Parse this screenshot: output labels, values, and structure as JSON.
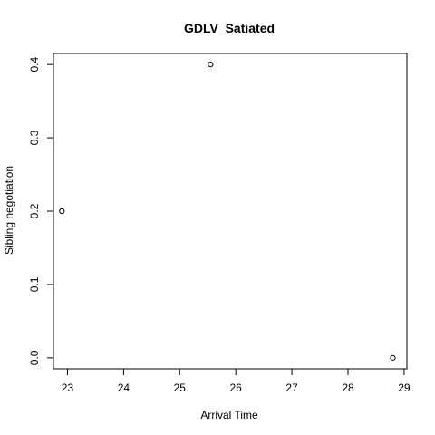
{
  "chart_data": {
    "type": "scatter",
    "title": "GDLV_Satiated",
    "xlabel": "Arrival Time",
    "ylabel": "Sibling negotiation",
    "xlim": [
      22.75,
      29.05
    ],
    "ylim": [
      -0.015,
      0.415
    ],
    "xticks": [
      23,
      24,
      25,
      26,
      27,
      28,
      29
    ],
    "yticks": [
      0.0,
      0.1,
      0.2,
      0.3,
      0.4
    ],
    "ytick_labels": [
      "0.0",
      "0.1",
      "0.2",
      "0.3",
      "0.4"
    ],
    "grid": false,
    "points": [
      {
        "x": 22.9,
        "y": 0.2
      },
      {
        "x": 25.55,
        "y": 0.4
      },
      {
        "x": 28.8,
        "y": 0.0
      }
    ],
    "marker": "open-circle",
    "color": "#000000"
  }
}
